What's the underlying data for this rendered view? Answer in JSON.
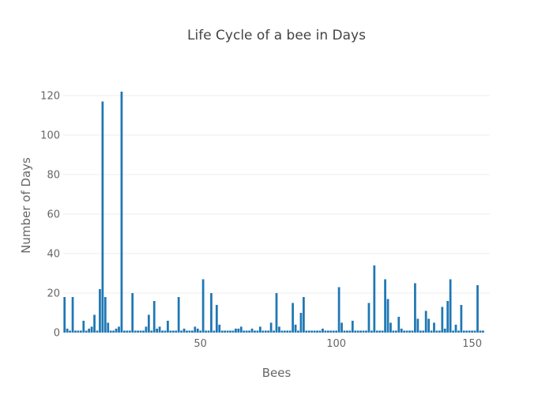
{
  "chart_data": {
    "type": "bar",
    "title": "Life Cycle of a bee in Days",
    "xlabel": "Bees",
    "ylabel": "Number of Days",
    "x_start": 0,
    "xlim": [
      -0.5,
      156.5
    ],
    "ylim": [
      0,
      122
    ],
    "x_ticks": [
      50,
      100,
      150
    ],
    "y_ticks": [
      0,
      20,
      40,
      60,
      80,
      100,
      120
    ],
    "grid": true,
    "colors": {
      "bar": "#1f77b4",
      "grid": "#eeeeee",
      "text": "#444444",
      "tick": "#666666"
    },
    "values": [
      18,
      2,
      1,
      18,
      1,
      1,
      1,
      6,
      1,
      2,
      3,
      9,
      1,
      22,
      117,
      18,
      5,
      1,
      1,
      2,
      3,
      122,
      1,
      1,
      1,
      20,
      1,
      1,
      1,
      1,
      3,
      9,
      1,
      16,
      2,
      3,
      1,
      1,
      6,
      1,
      1,
      1,
      18,
      1,
      2,
      1,
      1,
      1,
      3,
      2,
      1,
      27,
      1,
      1,
      20,
      1,
      14,
      4,
      1,
      1,
      1,
      1,
      1,
      2,
      2,
      3,
      1,
      1,
      1,
      2,
      1,
      1,
      3,
      1,
      1,
      1,
      5,
      1,
      20,
      3,
      1,
      1,
      1,
      1,
      15,
      4,
      1,
      10,
      18,
      1,
      1,
      1,
      1,
      1,
      1,
      2,
      1,
      1,
      1,
      1,
      1,
      23,
      5,
      1,
      1,
      1,
      6,
      1,
      1,
      1,
      1,
      1,
      15,
      1,
      34,
      1,
      1,
      1,
      27,
      17,
      5,
      1,
      1,
      8,
      2,
      1,
      1,
      1,
      1,
      25,
      7,
      1,
      1,
      11,
      7,
      1,
      5,
      1,
      1,
      13,
      2,
      16,
      27,
      1,
      4,
      1,
      14,
      1,
      1,
      1,
      1,
      1,
      24,
      1,
      1
    ]
  }
}
